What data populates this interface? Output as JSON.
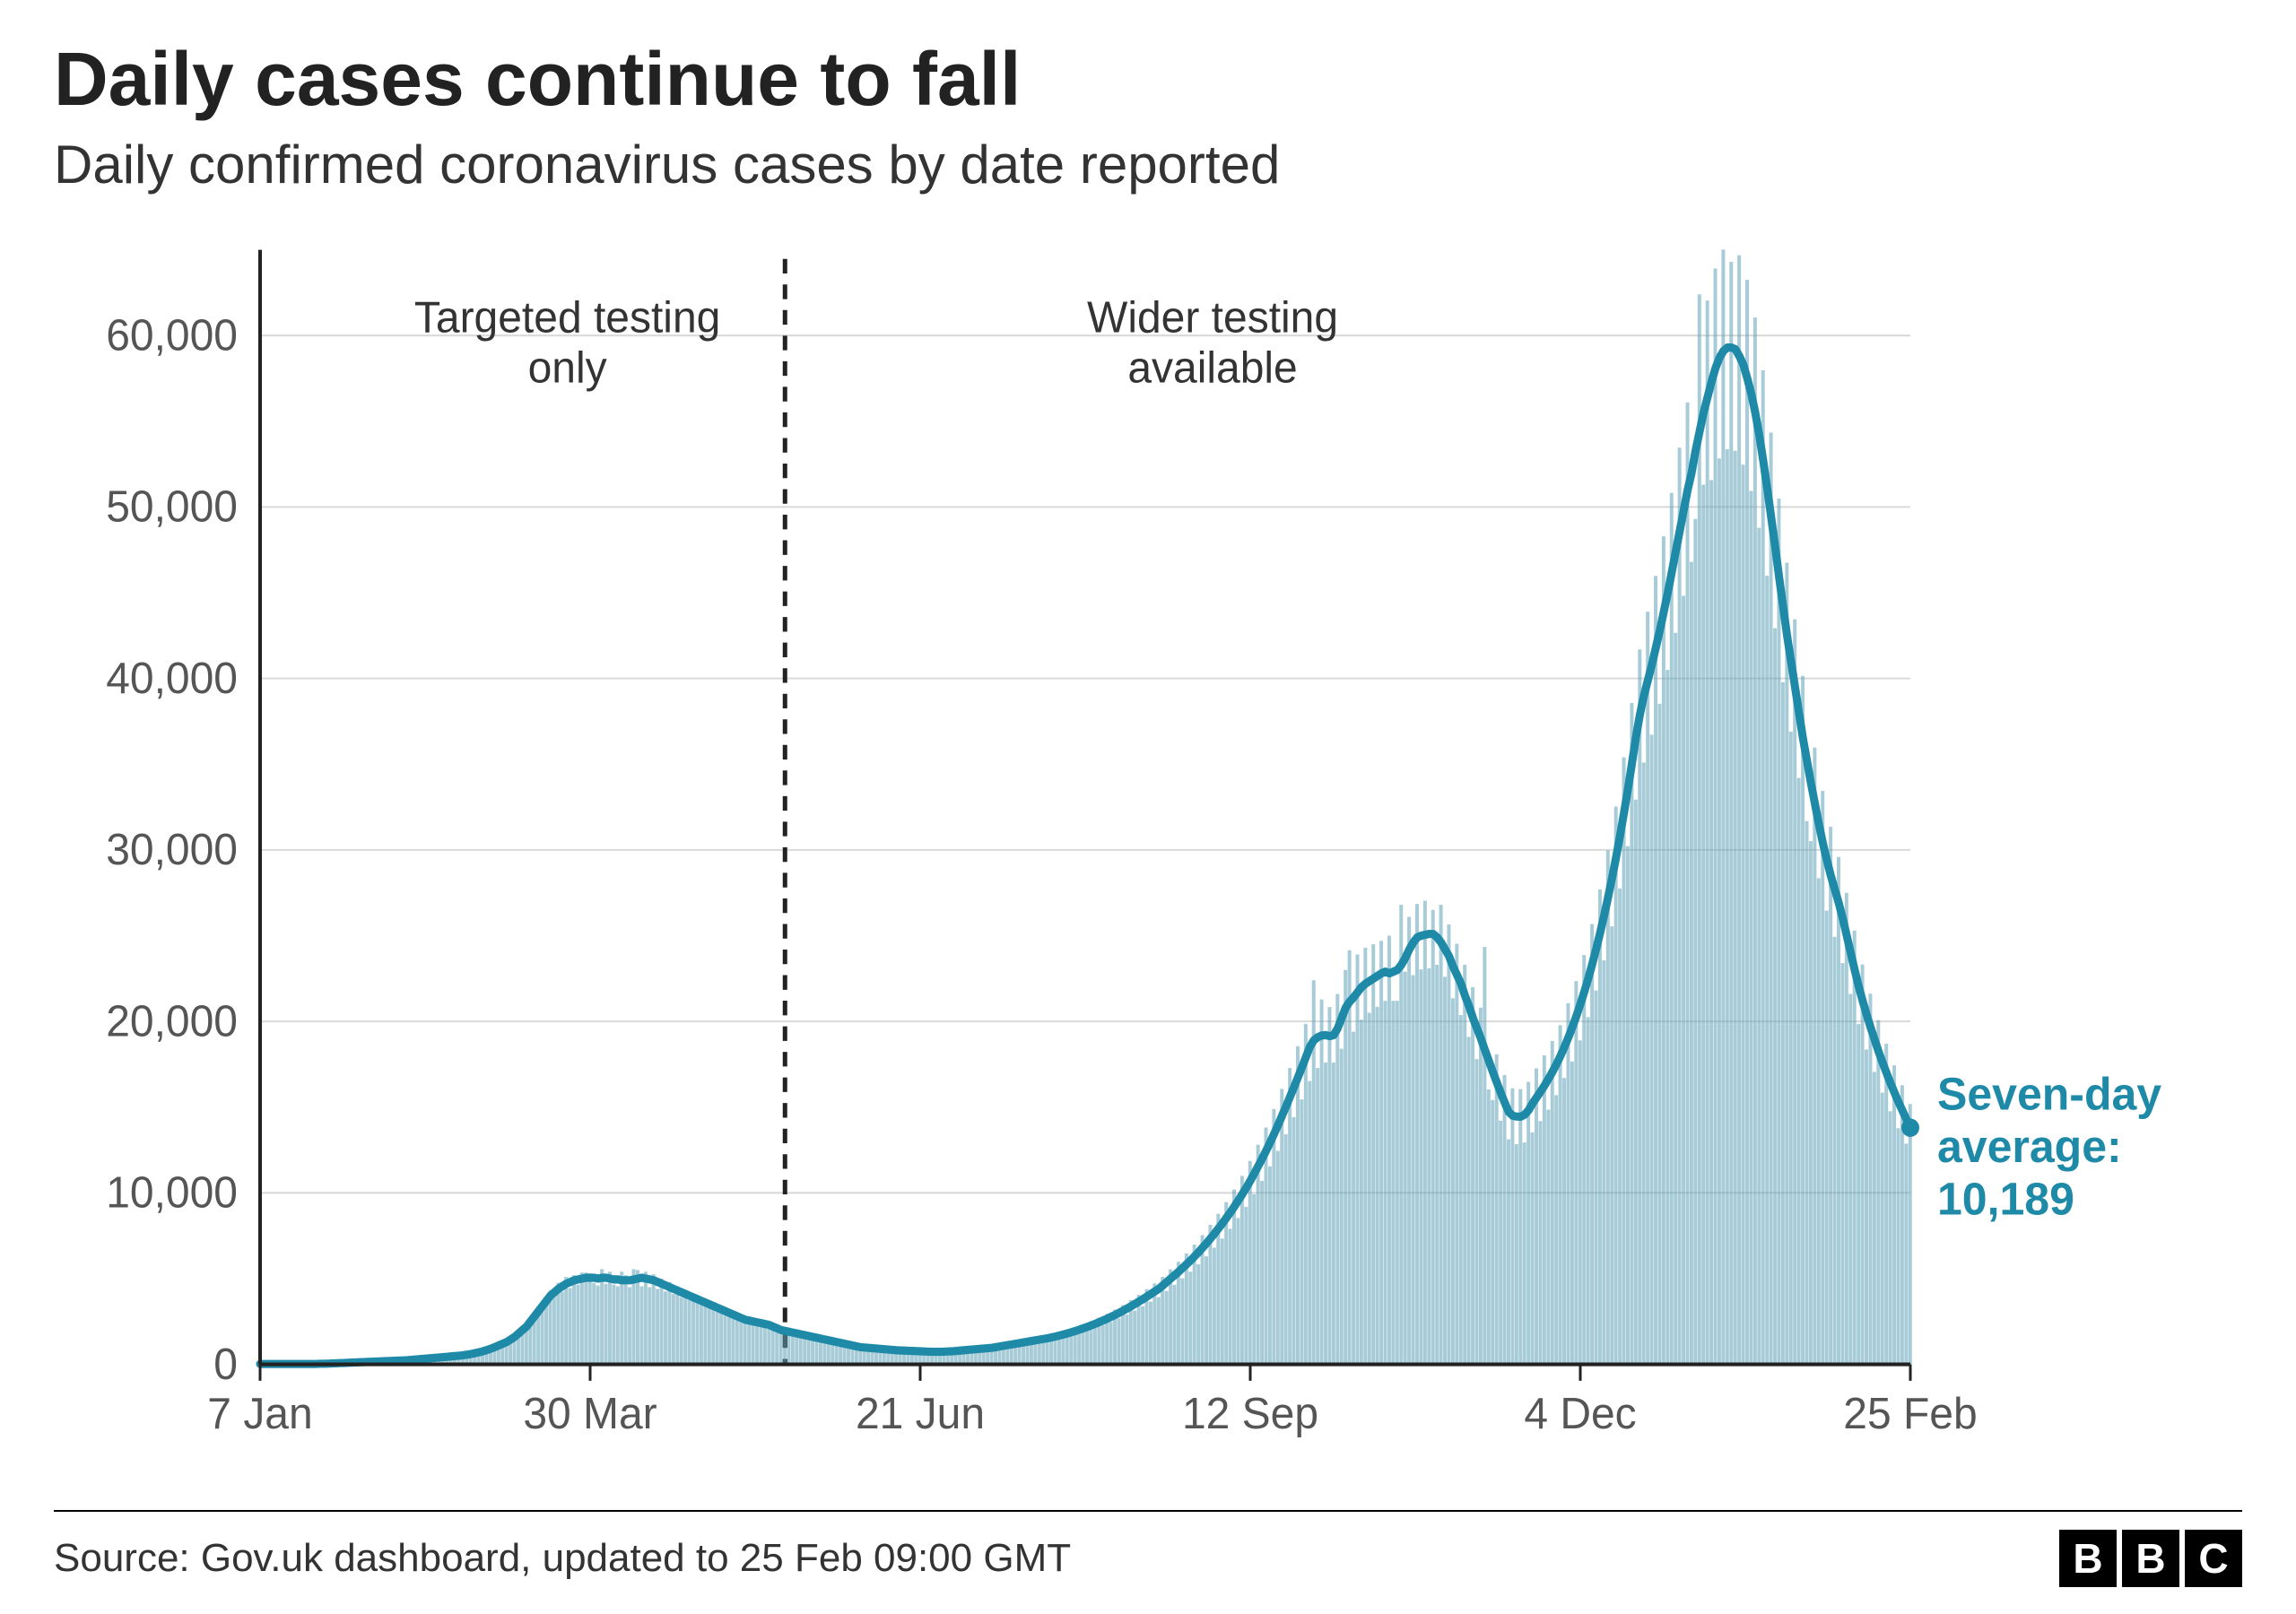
{
  "title": "Daily cases continue to fall",
  "subtitle": "Daily confirmed coronavirus cases by date reported",
  "source": "Source: Gov.uk dashboard, updated to 25 Feb 09:00 GMT",
  "logo_letters": [
    "B",
    "B",
    "C"
  ],
  "chart": {
    "type": "bar_with_line_overlay",
    "n_days": 416,
    "ylim": [
      0,
      65000
    ],
    "ytick_step": 10000,
    "yticks": [
      0,
      10000,
      20000,
      30000,
      40000,
      50000,
      60000
    ],
    "xtick_indices": [
      0,
      83,
      166,
      249,
      332,
      415
    ],
    "xtick_labels": [
      "7 Jan",
      "30 Mar",
      "21 Jun",
      "12 Sep",
      "4 Dec",
      "25 Feb"
    ],
    "bar_color": "#5fa3b8",
    "bar_opacity": 0.55,
    "line_color": "#1e8aa8",
    "line_width": 9,
    "grid_color": "#d9d9d9",
    "axis_color": "#222222",
    "axis_width": 4,
    "tick_font_size": 48,
    "tick_color": "#555555",
    "annotation_font_size": 48,
    "annotation_color": "#333333",
    "divider_index": 132,
    "divider_dash": "16 12",
    "divider_color": "#222222",
    "annotation_left": "Targeted testing\nonly",
    "annotation_right": "Wider testing\navailable",
    "end_label": "Seven-day\naverage:\n10,189",
    "end_label_color": "#1e8aa8",
    "end_label_font_size": 50,
    "end_label_font_weight": 700,
    "end_dot_radius": 10,
    "smoothed": [
      20,
      20,
      20,
      20,
      20,
      20,
      20,
      20,
      20,
      20,
      20,
      20,
      20,
      20,
      20,
      30,
      30,
      40,
      50,
      60,
      70,
      80,
      90,
      100,
      110,
      120,
      130,
      140,
      150,
      160,
      170,
      180,
      190,
      200,
      210,
      220,
      230,
      240,
      260,
      280,
      300,
      320,
      340,
      360,
      380,
      400,
      420,
      440,
      460,
      480,
      500,
      530,
      560,
      600,
      650,
      700,
      760,
      830,
      910,
      1000,
      1100,
      1200,
      1300,
      1450,
      1600,
      1800,
      2000,
      2200,
      2500,
      2800,
      3100,
      3400,
      3700,
      4000,
      4200,
      4400,
      4550,
      4700,
      4800,
      4900,
      4950,
      5000,
      5050,
      5050,
      5050,
      5000,
      5050,
      5050,
      5000,
      4950,
      4950,
      4900,
      4900,
      4900,
      4950,
      5000,
      5050,
      5000,
      4950,
      4900,
      4800,
      4700,
      4600,
      4500,
      4400,
      4300,
      4200,
      4100,
      4000,
      3900,
      3800,
      3700,
      3600,
      3500,
      3400,
      3300,
      3200,
      3100,
      3000,
      2900,
      2800,
      2700,
      2600,
      2550,
      2500,
      2450,
      2400,
      2350,
      2300,
      2200,
      2100,
      2000,
      1950,
      1900,
      1850,
      1800,
      1750,
      1700,
      1650,
      1600,
      1550,
      1500,
      1450,
      1400,
      1350,
      1300,
      1250,
      1200,
      1150,
      1100,
      1050,
      1000,
      980,
      960,
      940,
      920,
      900,
      880,
      860,
      840,
      820,
      810,
      800,
      790,
      780,
      770,
      760,
      750,
      740,
      730,
      730,
      730,
      740,
      750,
      760,
      780,
      800,
      820,
      840,
      860,
      880,
      900,
      920,
      940,
      960,
      1000,
      1040,
      1080,
      1120,
      1160,
      1200,
      1240,
      1280,
      1320,
      1360,
      1400,
      1440,
      1480,
      1520,
      1570,
      1620,
      1680,
      1740,
      1800,
      1870,
      1940,
      2020,
      2100,
      2180,
      2270,
      2360,
      2460,
      2560,
      2660,
      2770,
      2880,
      3000,
      3120,
      3250,
      3380,
      3520,
      3660,
      3800,
      3950,
      4100,
      4250,
      4400,
      4600,
      4800,
      5000,
      5200,
      5400,
      5620,
      5840,
      6060,
      6300,
      6540,
      6800,
      7060,
      7340,
      7620,
      7920,
      8220,
      8540,
      8860,
      9200,
      9560,
      9920,
      10300,
      10700,
      11120,
      11560,
      12000,
      12460,
      12940,
      13440,
      13960,
      14500,
      15040,
      15600,
      16160,
      16740,
      17320,
      17920,
      18520,
      18900,
      19080,
      19180,
      19200,
      19140,
      19200,
      19600,
      20200,
      20800,
      21150,
      21400,
      21700,
      22000,
      22200,
      22350,
      22500,
      22650,
      22800,
      22900,
      22800,
      22900,
      23000,
      23300,
      23700,
      24200,
      24600,
      24900,
      25000,
      25050,
      25100,
      25100,
      24900,
      24600,
      24200,
      23800,
      23200,
      22700,
      22200,
      21500,
      20900,
      20200,
      19600,
      19000,
      18340,
      17700,
      17060,
      16440,
      15830,
      15260,
      14720,
      14500,
      14450,
      14440,
      14560,
      14820,
      15220,
      15560,
      15900,
      16260,
      16650,
      17060,
      17500,
      17980,
      18500,
      19060,
      19660,
      20300,
      20990,
      21720,
      22500,
      23340,
      24230,
      25180,
      26180,
      27250,
      28380,
      29570,
      30840,
      32180,
      33580,
      35060,
      36590,
      37900,
      39000,
      39900,
      40800,
      41800,
      42800,
      43900,
      45000,
      46200,
      47400,
      48600,
      49800,
      51000,
      52000,
      53300,
      54400,
      55500,
      56400,
      57300,
      58100,
      58700,
      59100,
      59300,
      59300,
      59200,
      58800,
      58300,
      57500,
      56600,
      55500,
      54200,
      52700,
      51100,
      49400,
      47700,
      45900,
      44200,
      42500,
      41000,
      39500,
      38000,
      36500,
      35200,
      33900,
      32700,
      31500,
      30400,
      29400,
      28500,
      27700,
      26900,
      26000,
      25000,
      24000,
      23000,
      22050,
      21200,
      20400,
      19650,
      18950,
      18250,
      17600,
      17000,
      16400,
      15850,
      15300,
      14800,
      14300,
      13800,
      13300,
      12850,
      12400,
      12000,
      11600,
      11250,
      10950,
      10700,
      10500,
      10189
    ],
    "noise": [
      0,
      0,
      0,
      0,
      0,
      0,
      0,
      0,
      0,
      0,
      0,
      0,
      0,
      0,
      0,
      5,
      -5,
      10,
      -10,
      5,
      -5,
      10,
      5,
      -5,
      10,
      -5,
      5,
      -10,
      15,
      -5,
      10,
      -10,
      5,
      -5,
      10,
      5,
      -10,
      15,
      -5,
      10,
      -15,
      10,
      5,
      -10,
      10,
      -5,
      5,
      10,
      -5,
      -10,
      20,
      -15,
      30,
      -20,
      40,
      -30,
      50,
      60,
      -40,
      80,
      -60,
      100,
      -80,
      120,
      100,
      -100,
      150,
      -120,
      200,
      -150,
      250,
      200,
      -200,
      300,
      -250,
      350,
      -300,
      400,
      -350,
      300,
      -300,
      350,
      300,
      250,
      -300,
      -400,
      500,
      -350,
      400,
      -300,
      -400,
      500,
      300,
      -400,
      600,
      500,
      -500,
      400,
      -450,
      350,
      -400,
      300,
      -350,
      300,
      -300,
      250,
      -280,
      250,
      -250,
      220,
      -220,
      200,
      -200,
      180,
      -180,
      160,
      -160,
      150,
      -150,
      140,
      -140,
      130,
      -130,
      120,
      -120,
      110,
      -110,
      100,
      -100,
      90,
      -90,
      85,
      -85,
      80,
      -80,
      78,
      -78,
      75,
      -75,
      72,
      -72,
      70,
      -70,
      68,
      -68,
      65,
      -65,
      62,
      -62,
      60,
      -60,
      58,
      -55,
      52,
      -50,
      48,
      -48,
      46,
      -45,
      44,
      -44,
      43,
      -42,
      41,
      -40,
      40,
      -40,
      40,
      -40,
      40,
      -40,
      40,
      -45,
      50,
      -50,
      55,
      -55,
      60,
      -60,
      65,
      -65,
      70,
      -70,
      75,
      -78,
      82,
      -85,
      90,
      -95,
      100,
      -105,
      110,
      -115,
      120,
      -125,
      130,
      -135,
      140,
      -145,
      150,
      -160,
      170,
      -175,
      185,
      -190,
      200,
      -210,
      220,
      -230,
      240,
      -250,
      260,
      -270,
      280,
      -295,
      310,
      -320,
      335,
      -350,
      365,
      -380,
      395,
      -410,
      430,
      -445,
      465,
      -480,
      500,
      -520,
      540,
      -560,
      580,
      -605,
      630,
      -655,
      680,
      -705,
      735,
      -760,
      795,
      -820,
      855,
      -885,
      920,
      -955,
      995,
      -1030,
      1070,
      -1115,
      1160,
      -1200,
      1250,
      -1300,
      1345,
      -1395,
      1450,
      -1510,
      1565,
      -1625,
      1685,
      -1745,
      1810,
      -1870,
      1935,
      -2000,
      3500,
      -1800,
      2100,
      -1600,
      1700,
      -1600,
      2000,
      -1800,
      2200,
      3000,
      -2000,
      2200,
      -1900,
      2100,
      -1850,
      2000,
      -1800,
      1900,
      -1700,
      2200,
      -1700,
      -1800,
      3500,
      -800,
      1900,
      -1900,
      1950,
      -1970,
      1988,
      -2000,
      1400,
      -1600,
      2200,
      -1600,
      1850,
      -1850,
      1830,
      -1830,
      1800,
      -1800,
      1800,
      -1800,
      1800,
      6000,
      -1670,
      -1650,
      1640,
      -1620,
      1610,
      -1600,
      1600,
      -1610,
      1610,
      -1625,
      1650,
      -1690,
      1700,
      -1715,
      1755,
      -1800,
      1800,
      -1800,
      1800,
      -1800,
      2000,
      -2000,
      2050,
      -2100,
      2150,
      -2250,
      2335,
      -2425,
      2520,
      -2620,
      2725,
      -2840,
      2960,
      -3085,
      3220,
      -3360,
      3510,
      -3660,
      3790,
      -3900,
      3990,
      -4080,
      4180,
      -4280,
      4390,
      -4500,
      4620,
      -4740,
      4860,
      -4980,
      5100,
      -5200,
      -4000,
      8000,
      -4200,
      5640,
      -5730,
      5810,
      -5870,
      5910,
      -5930,
      5000,
      -5920,
      5880,
      -5830,
      5750,
      -5660,
      5550,
      -5420,
      5270,
      -5110,
      4940,
      -4770,
      4590,
      -4420,
      4250,
      -4100,
      3950,
      -3800,
      3650,
      -3520,
      -3390,
      3270,
      -3150,
      3040,
      -2940,
      2850,
      -2770,
      2690,
      -2600,
      2500,
      -2400,
      2300,
      -2205,
      2120,
      -2040,
      1965,
      -1895,
      1825,
      -1760,
      1700,
      -1640,
      1585,
      -1530,
      1480,
      -1430,
      1380,
      -1330,
      1285,
      -1240,
      1200,
      -1160,
      1125,
      -1095,
      1070,
      -1050,
      0
    ]
  }
}
